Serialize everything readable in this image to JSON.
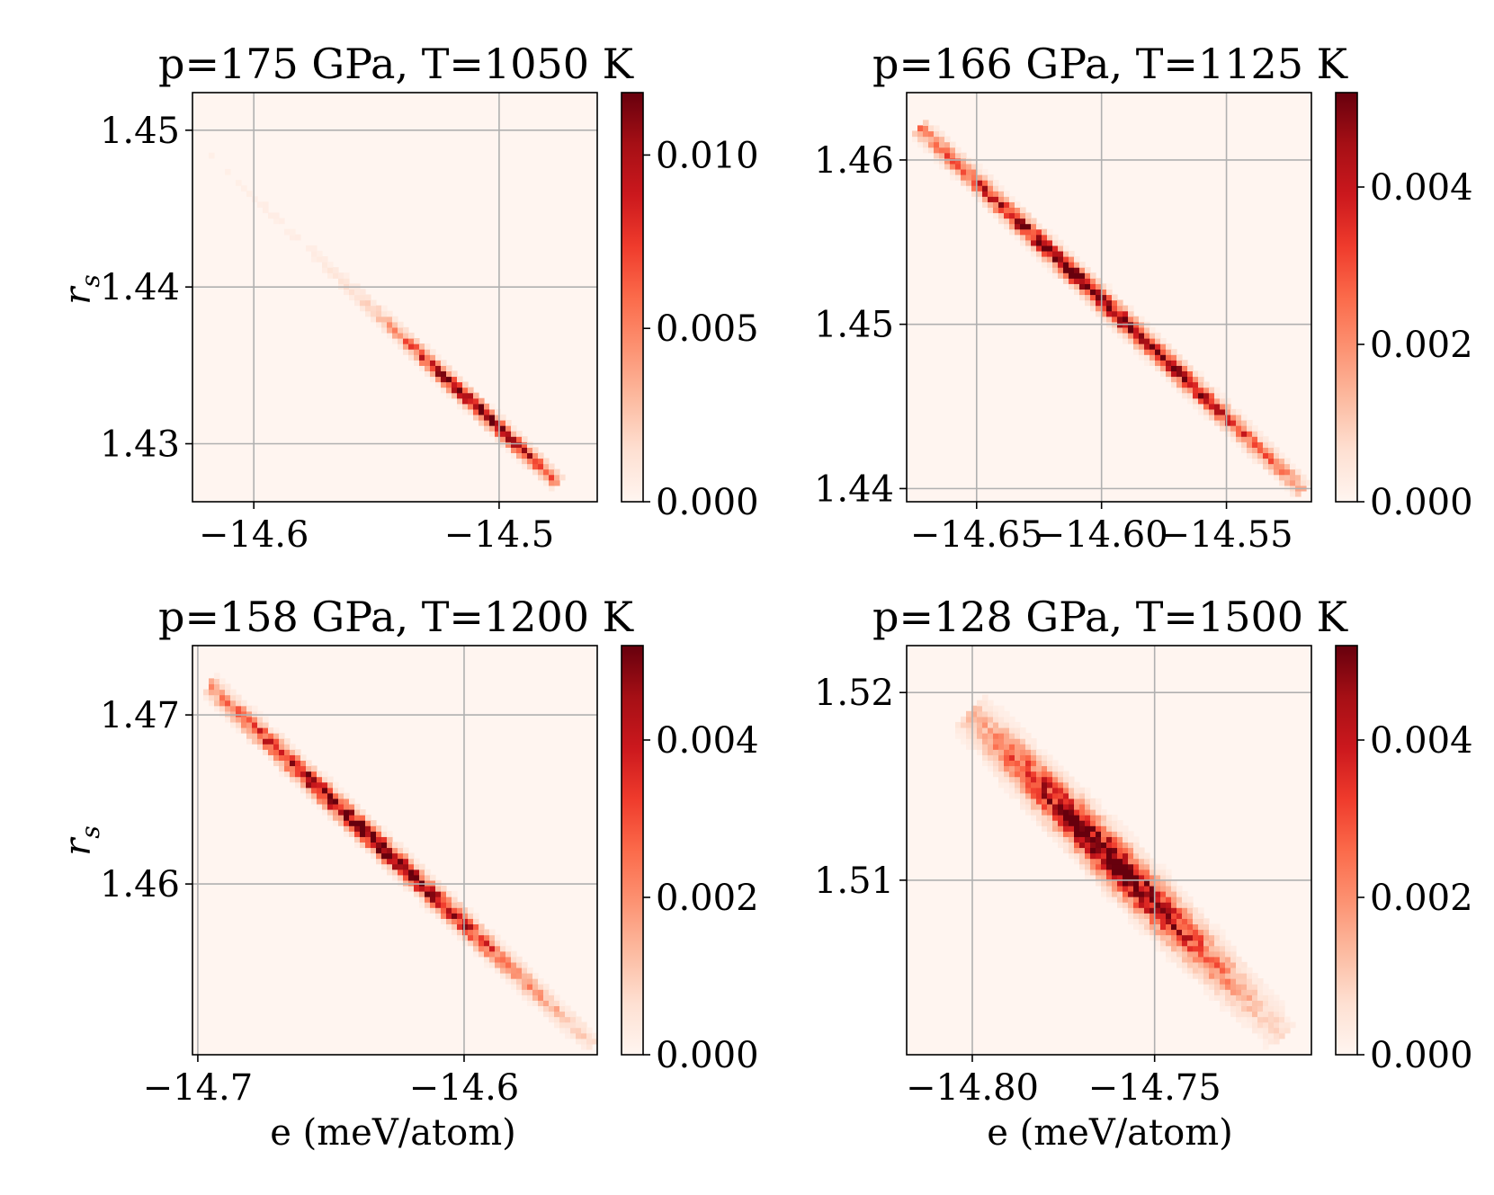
{
  "figure": {
    "background": "#ffffff",
    "grid_color": "#b0b0b0",
    "colormap": "Reds"
  },
  "chart_data": [
    {
      "type": "heatmap",
      "title": "p=175 GPa, T=1050 K",
      "xlabel": "",
      "ylabel": "r_s",
      "xlim": [
        -14.625,
        -14.46
      ],
      "ylim": [
        1.4263,
        1.4524
      ],
      "xticks": [
        {
          "value": -14.6,
          "label": "−14.6"
        },
        {
          "value": -14.5,
          "label": "−14.5"
        }
      ],
      "yticks": [
        {
          "value": 1.43,
          "label": "1.43"
        },
        {
          "value": 1.44,
          "label": "1.44"
        },
        {
          "value": 1.45,
          "label": "1.45"
        }
      ],
      "grid": true,
      "colorbar": {
        "min": 0,
        "max": 0.0118,
        "ticks": [
          {
            "value": 0,
            "label": "0.000"
          },
          {
            "value": 0.005,
            "label": "0.005"
          },
          {
            "value": 0.01,
            "label": "0.010"
          }
        ]
      },
      "distribution": {
        "peak_e": -14.508,
        "peak_rs": 1.4322,
        "slope": -0.147,
        "along_start": -14.625,
        "along_end": -14.477,
        "width_perp": 0.6,
        "dense_center": -14.508,
        "dense_sigma": 0.022,
        "tail_amplitude": 0.07,
        "tail_sigma": 0.08,
        "bins_x": 75,
        "bins_y": 75
      }
    },
    {
      "type": "heatmap",
      "title": "p=166 GPa, T=1125 K",
      "xlabel": "",
      "ylabel": "",
      "xlim": [
        -14.678,
        -14.516
      ],
      "ylim": [
        1.4392,
        1.4641
      ],
      "xticks": [
        {
          "value": -14.65,
          "label": "−14.65"
        },
        {
          "value": -14.6,
          "label": "−14.60"
        },
        {
          "value": -14.55,
          "label": "−14.55"
        }
      ],
      "yticks": [
        {
          "value": 1.44,
          "label": "1.44"
        },
        {
          "value": 1.45,
          "label": "1.45"
        },
        {
          "value": 1.46,
          "label": "1.46"
        }
      ],
      "grid": true,
      "colorbar": {
        "min": 0,
        "max": 0.0052,
        "ticks": [
          {
            "value": 0,
            "label": "0.000"
          },
          {
            "value": 0.002,
            "label": "0.002"
          },
          {
            "value": 0.004,
            "label": "0.004"
          }
        ]
      },
      "distribution": {
        "peak_e": -14.6,
        "peak_rs": 1.4515,
        "slope": -0.1435,
        "along_start": -14.672,
        "along_end": -14.52,
        "width_perp": 0.75,
        "dense_center": -14.6,
        "dense_sigma": 0.05,
        "tail_amplitude": 0.05,
        "tail_sigma": 0.09,
        "bins_x": 75,
        "bins_y": 75
      }
    },
    {
      "type": "heatmap",
      "title": "p=158 GPa, T=1200 K",
      "xlabel": "e (meV/atom)",
      "ylabel": "r_s",
      "xlim": [
        -14.702,
        -14.55
      ],
      "ylim": [
        1.4499,
        1.4741
      ],
      "xticks": [
        {
          "value": -14.7,
          "label": "−14.7"
        },
        {
          "value": -14.6,
          "label": "−14.6"
        }
      ],
      "yticks": [
        {
          "value": 1.46,
          "label": "1.46"
        },
        {
          "value": 1.47,
          "label": "1.47"
        }
      ],
      "grid": true,
      "colorbar": {
        "min": 0,
        "max": 0.0052,
        "ticks": [
          {
            "value": 0,
            "label": "0.000"
          },
          {
            "value": 0.002,
            "label": "0.002"
          },
          {
            "value": 0.004,
            "label": "0.004"
          }
        ]
      },
      "distribution": {
        "peak_e": -14.635,
        "peak_rs": 1.4628,
        "slope": -0.1475,
        "along_start": -14.695,
        "along_end": -14.553,
        "width_perp": 0.8,
        "dense_center": -14.635,
        "dense_sigma": 0.04,
        "tail_amplitude": 0.05,
        "tail_sigma": 0.07,
        "bins_x": 75,
        "bins_y": 75
      }
    },
    {
      "type": "heatmap",
      "title": "p=128 GPa, T=1500 K",
      "xlabel": "e (meV/atom)",
      "ylabel": "",
      "xlim": [
        -14.818,
        -14.707
      ],
      "ylim": [
        1.5007,
        1.5225
      ],
      "xticks": [
        {
          "value": -14.8,
          "label": "−14.80"
        },
        {
          "value": -14.75,
          "label": "−14.75"
        }
      ],
      "yticks": [
        {
          "value": 1.51,
          "label": "1.51"
        },
        {
          "value": 1.52,
          "label": "1.52"
        }
      ],
      "grid": true,
      "colorbar": {
        "min": 0,
        "max": 0.0052,
        "ticks": [
          {
            "value": 0,
            "label": "0.000"
          },
          {
            "value": 0.002,
            "label": "0.002"
          },
          {
            "value": 0.004,
            "label": "0.004"
          }
        ]
      },
      "distribution": {
        "peak_e": -14.76,
        "peak_rs": 1.5108,
        "slope": -0.2,
        "along_start": -14.8,
        "along_end": -14.715,
        "width_perp": 1.6,
        "dense_center": -14.762,
        "dense_sigma": 0.021,
        "tail_amplitude": 0.06,
        "tail_sigma": 0.05,
        "bins_x": 75,
        "bins_y": 75
      }
    }
  ]
}
